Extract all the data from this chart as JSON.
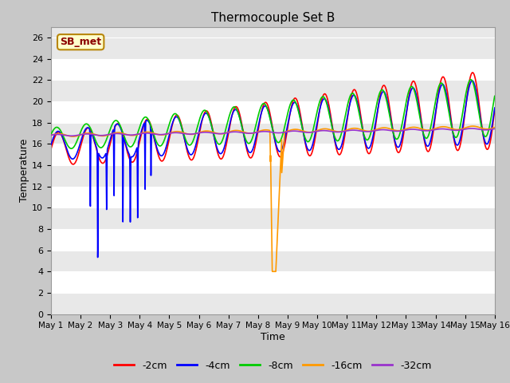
{
  "title": "Thermocouple Set B",
  "xlabel": "Time",
  "ylabel": "Temperature",
  "ylim": [
    0,
    27
  ],
  "yticks": [
    0,
    2,
    4,
    6,
    8,
    10,
    12,
    14,
    16,
    18,
    20,
    22,
    24,
    26
  ],
  "fig_bg_color": "#c8c8c8",
  "plot_bg_color": "#e8e8e8",
  "grid_color": "#ffffff",
  "annotation_text": "SB_met",
  "annotation_box_color": "#ffffcc",
  "annotation_text_color": "#8b0000",
  "annotation_border_color": "#b8860b",
  "legend_labels": [
    "-2cm",
    "-4cm",
    "-8cm",
    "-16cm",
    "-32cm"
  ],
  "line_colors": [
    "#ff0000",
    "#0000ff",
    "#00cc00",
    "#ff9900",
    "#9933cc"
  ],
  "line_widths": [
    1.2,
    1.2,
    1.2,
    1.2,
    1.2
  ],
  "figsize": [
    6.4,
    4.8
  ],
  "dpi": 100
}
